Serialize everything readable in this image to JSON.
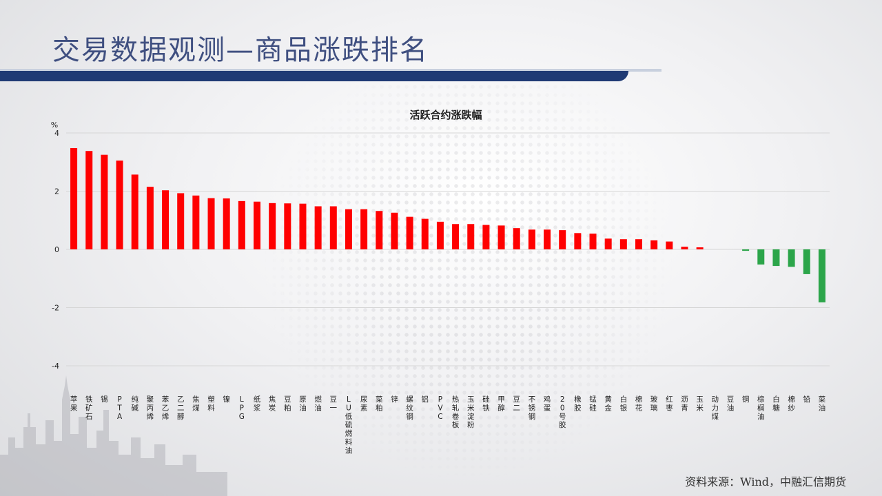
{
  "slide": {
    "title": "交易数据观测—商品涨跌排名",
    "source": "资料来源：Wind，中融汇信期货"
  },
  "colors": {
    "title": "#3f4f80",
    "title_bar": "#1f3a74",
    "up": "#ff0000",
    "down": "#2ca54a",
    "grid": "#d6d6d6"
  },
  "chart_data": {
    "type": "bar",
    "title": "活跃合约涨跌幅",
    "ylabel": "%",
    "xlabel": "",
    "ylim": [
      -4,
      4
    ],
    "yticks": [
      4,
      2,
      0,
      -2,
      -4
    ],
    "grid": true,
    "categories": [
      "苹果",
      "铁矿石",
      "锡",
      "PTA",
      "纯碱",
      "聚丙烯",
      "苯乙烯",
      "乙二醇",
      "焦煤",
      "塑料",
      "镍",
      "LPG",
      "纸浆",
      "焦炭",
      "豆粕",
      "原油",
      "燃油",
      "豆一",
      "LU低硫燃料油",
      "尿素",
      "菜粕",
      "锌",
      "螺纹钢",
      "铝",
      "PVC",
      "热轧卷板",
      "玉米淀粉",
      "硅铁",
      "甲醇",
      "豆二",
      "不锈钢",
      "鸡蛋",
      "20号胶",
      "橡胶",
      "锰硅",
      "黄金",
      "白银",
      "棉花",
      "玻璃",
      "红枣",
      "沥青",
      "玉米",
      "动力煤",
      "豆油",
      "铜",
      "棕榈油",
      "白糖",
      "棉纱",
      "铅",
      "菜油"
    ],
    "values": [
      3.48,
      3.38,
      3.25,
      3.05,
      2.57,
      2.15,
      2.03,
      1.93,
      1.85,
      1.76,
      1.75,
      1.66,
      1.64,
      1.59,
      1.58,
      1.57,
      1.48,
      1.48,
      1.38,
      1.38,
      1.32,
      1.26,
      1.12,
      1.05,
      0.95,
      0.87,
      0.87,
      0.84,
      0.82,
      0.73,
      0.68,
      0.68,
      0.66,
      0.56,
      0.54,
      0.37,
      0.35,
      0.35,
      0.31,
      0.27,
      0.09,
      0.07,
      0.0,
      0.0,
      -0.05,
      -0.52,
      -0.57,
      -0.6,
      -0.85,
      -1.82
    ]
  }
}
